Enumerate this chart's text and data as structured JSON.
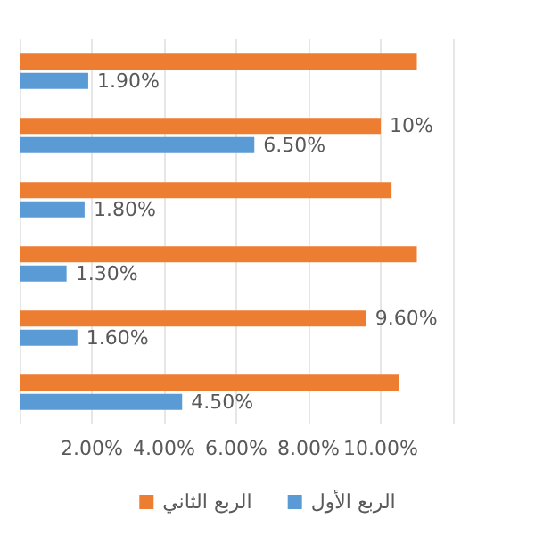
{
  "chart_data": {
    "type": "bar",
    "orientation": "horizontal",
    "categories": [
      null,
      null,
      null,
      null,
      null,
      null
    ],
    "series": [
      {
        "name": "الربع الثاني",
        "color": "#ed7d31",
        "values": [
          11,
          10,
          10.3,
          11,
          9.6,
          10.5
        ],
        "value_labels": [
          null,
          "10%",
          null,
          null,
          "9.60%",
          null
        ]
      },
      {
        "name": "الربع الأول",
        "color": "#5b9bd5",
        "values": [
          1.9,
          6.5,
          1.8,
          1.3,
          1.6,
          4.5
        ],
        "value_labels": [
          "1.90%",
          "6.50%",
          "1.80%",
          "1.30%",
          "1.60%",
          "4.50%"
        ]
      }
    ],
    "xlim": [
      0,
      12
    ],
    "xticks": [
      {
        "value": 0,
        "label": null
      },
      {
        "value": 2,
        "label": "2.00%"
      },
      {
        "value": 4,
        "label": "4.00%"
      },
      {
        "value": 6,
        "label": "6.00%"
      },
      {
        "value": 8,
        "label": "8.00%"
      },
      {
        "value": 10,
        "label": "10.00%"
      },
      {
        "value": 12,
        "label": null
      }
    ],
    "grid": "x",
    "legend": "bottom"
  }
}
